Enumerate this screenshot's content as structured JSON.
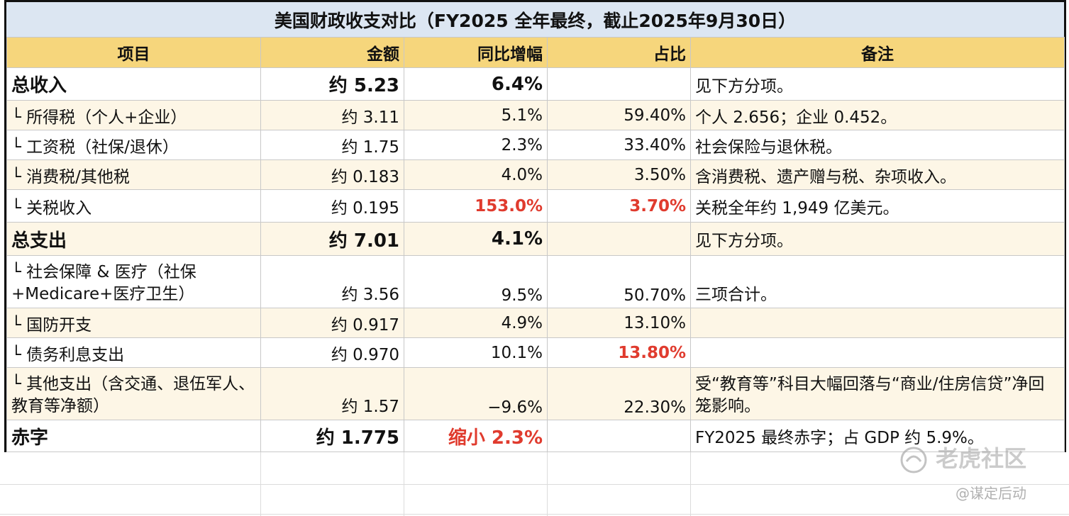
{
  "title": "美国财政收支对比（FY2025 全年最终，截止2025年9月30日）",
  "headers": {
    "item": "项目",
    "amount": "金额",
    "yoy": "同比增幅",
    "share": "占比",
    "note": "备注"
  },
  "rows": [
    {
      "item": "总收入",
      "amount": "约 5.23",
      "yoy": "6.4%",
      "share": "",
      "note": "见下方分项。"
    },
    {
      "item": "└ 所得税（个人+企业）",
      "amount": "约 3.11",
      "yoy": "5.1%",
      "share": "59.40%",
      "note": "个人 2.656；企业 0.452。"
    },
    {
      "item": "└ 工资税（社保/退休）",
      "amount": "约 1.75",
      "yoy": "2.3%",
      "share": "33.40%",
      "note": "社会保险与退休税。"
    },
    {
      "item": "└ 消费税/其他税",
      "amount": "约 0.183",
      "yoy": "4.0%",
      "share": "3.50%",
      "note": "含消费税、遗产赠与税、杂项收入。"
    },
    {
      "item": "└ 关税收入",
      "amount": "约 0.195",
      "yoy": "153.0%",
      "share": "3.70%",
      "note": "关税全年约 1,949 亿美元。"
    },
    {
      "item": "总支出",
      "amount": "约 7.01",
      "yoy": "4.1%",
      "share": "",
      "note": "见下方分项。"
    },
    {
      "item": "└ 社会保障 & 医疗（社保+Medicare+医疗卫生）",
      "amount": "约 3.56",
      "yoy": "9.5%",
      "share": "50.70%",
      "note": "三项合计。"
    },
    {
      "item": "└ 国防开支",
      "amount": "约 0.917",
      "yoy": "4.9%",
      "share": "13.10%",
      "note": ""
    },
    {
      "item": "└ 债务利息支出",
      "amount": "约 0.970",
      "yoy": "10.1%",
      "share": "13.80%",
      "note": ""
    },
    {
      "item": "└ 其他支出（含交通、退伍军人、教育等净额）",
      "amount": "约 1.57",
      "yoy": "−9.6%",
      "share": "22.30%",
      "note": "受“教育等”科目大幅回落与“商业/住房信贷”净回笼影响。"
    },
    {
      "item": "赤字",
      "amount": "约 1.775",
      "yoy": "缩小 2.3%",
      "share": "",
      "note": "FY2025 最终赤字；占 GDP 约 5.9%。"
    }
  ],
  "watermark": {
    "brand": "老虎社区",
    "author": "@谋定后动"
  },
  "colors": {
    "title_bg": "#dce6f2",
    "header_bg": "#f6d67c",
    "sub_row_bg": "#fdf6e6",
    "highlight_red": "#e03b2e"
  }
}
